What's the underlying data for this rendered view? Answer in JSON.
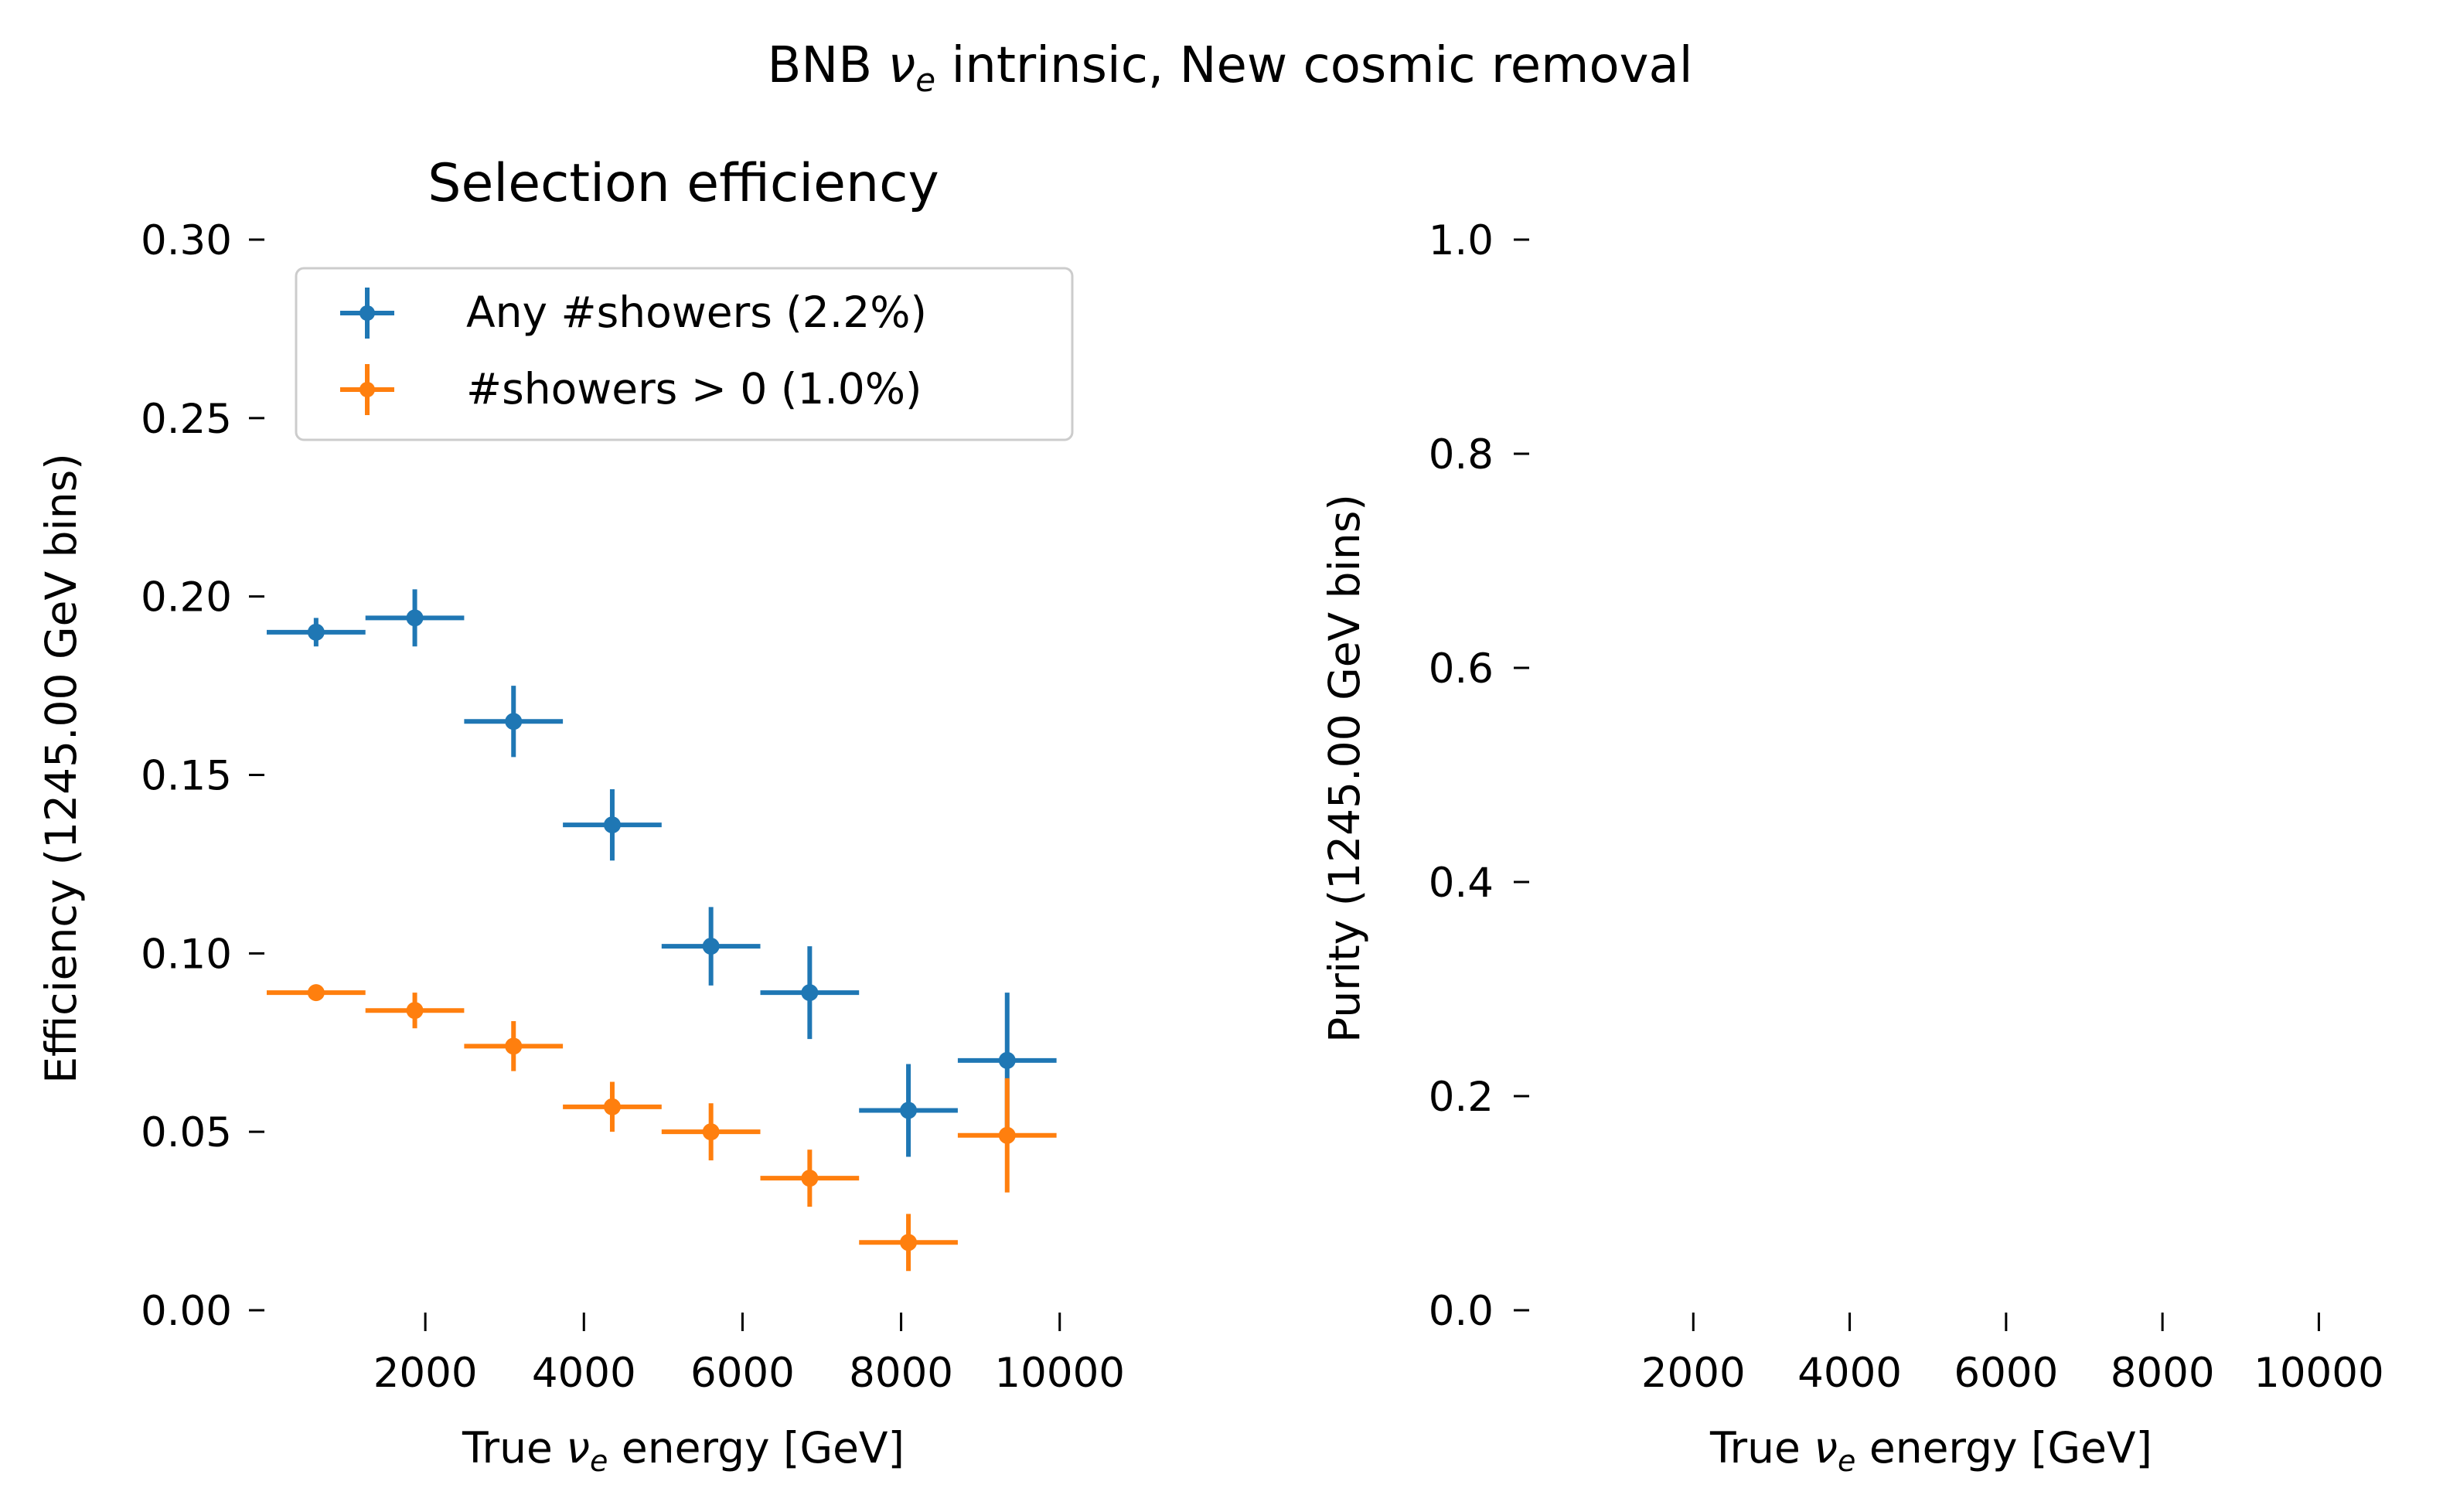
{
  "figure": {
    "title_parts": [
      "BNB ",
      "ν",
      "e",
      " intrinsic, New cosmic removal"
    ]
  },
  "chart_data": [
    {
      "type": "errorbar",
      "title": "Selection efficiency",
      "xlabel_parts": [
        "True ",
        "ν",
        "e",
        " energy [GeV]"
      ],
      "ylabel": "Efficiency (1245.00 GeV bins)",
      "xlim": [
        0,
        10500
      ],
      "ylim": [
        0,
        0.3
      ],
      "xticks": [
        2000,
        4000,
        6000,
        8000,
        10000
      ],
      "yticks": [
        0.0,
        0.05,
        0.1,
        0.15,
        0.2,
        0.25,
        0.3
      ],
      "yticklabels": [
        "0.00",
        "0.05",
        "0.10",
        "0.15",
        "0.20",
        "0.25",
        "0.30"
      ],
      "grid": false,
      "legend_position": "upper-left",
      "x": [
        622.5,
        1867.5,
        3112.5,
        4357.5,
        5602.5,
        6847.5,
        8092.5,
        9337.5
      ],
      "xerr": 622.5,
      "series": [
        {
          "name": "Any #showers (2.2%)",
          "color": "#1f77b4",
          "values": [
            0.19,
            0.194,
            0.165,
            0.136,
            0.102,
            0.089,
            0.056,
            0.07
          ],
          "yerr": [
            0.004,
            0.008,
            0.01,
            0.01,
            0.011,
            0.013,
            0.013,
            0.019
          ]
        },
        {
          "name": "#showers > 0 (1.0%)",
          "color": "#ff7f0e",
          "values": [
            0.089,
            0.084,
            0.074,
            0.057,
            0.05,
            0.037,
            0.019,
            0.049
          ],
          "yerr": [
            0.002,
            0.005,
            0.007,
            0.007,
            0.008,
            0.008,
            0.008,
            0.016
          ]
        }
      ]
    },
    {
      "type": "errorbar",
      "title": "",
      "xlabel_parts": [
        "True ",
        "ν",
        "e",
        " energy [GeV]"
      ],
      "ylabel": "Purity (1245.00 GeV bins)",
      "xlim": [
        0,
        10500
      ],
      "ylim": [
        0,
        1.0
      ],
      "xticks": [
        2000,
        4000,
        6000,
        8000,
        10000
      ],
      "yticks": [
        0.0,
        0.2,
        0.4,
        0.6,
        0.8,
        1.0
      ],
      "yticklabels": [
        "0.0",
        "0.2",
        "0.4",
        "0.6",
        "0.8",
        "1.0"
      ],
      "grid": false,
      "series": []
    }
  ]
}
